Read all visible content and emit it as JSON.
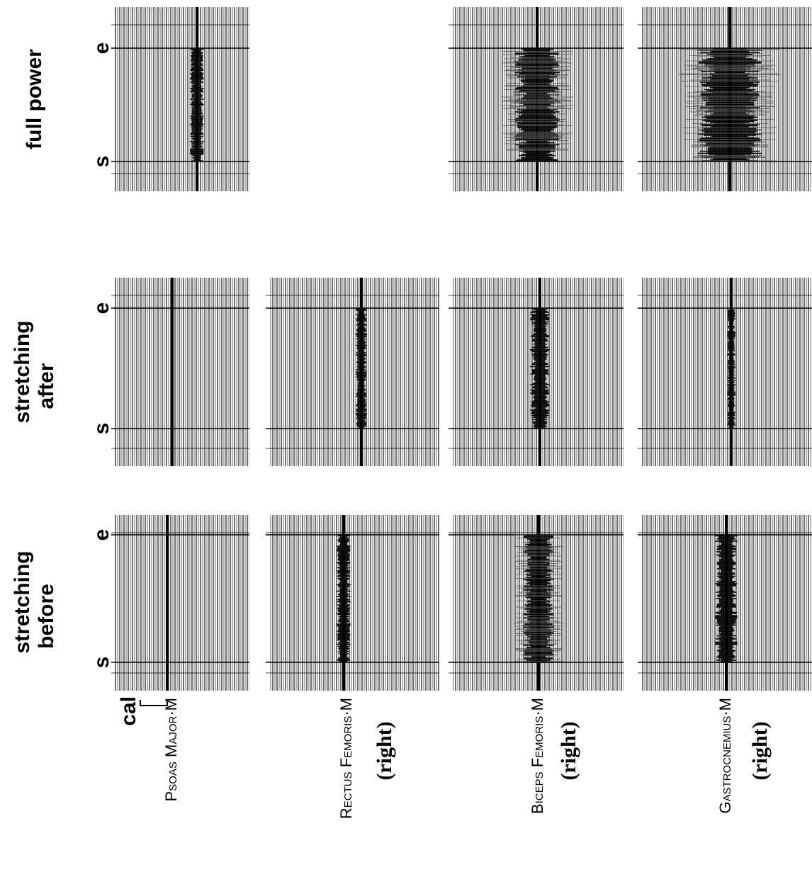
{
  "rows": [
    {
      "label": [
        "full power"
      ],
      "start": "s",
      "end": "e"
    },
    {
      "label": [
        "stretching",
        "after"
      ],
      "start": "s",
      "end": "e"
    },
    {
      "label": [
        "stretching",
        "before"
      ],
      "start": "s",
      "end": "e"
    }
  ],
  "calibration": "cal",
  "columns": [
    {
      "name": "Psoas Major·M"
    },
    {
      "name": "Rectus Femoris·M",
      "side": "(right)"
    },
    {
      "name": "Biceps Femoris·M",
      "side": "(right)"
    },
    {
      "name": "Gastrocnemius·M",
      "side": "(right)"
    }
  ]
}
